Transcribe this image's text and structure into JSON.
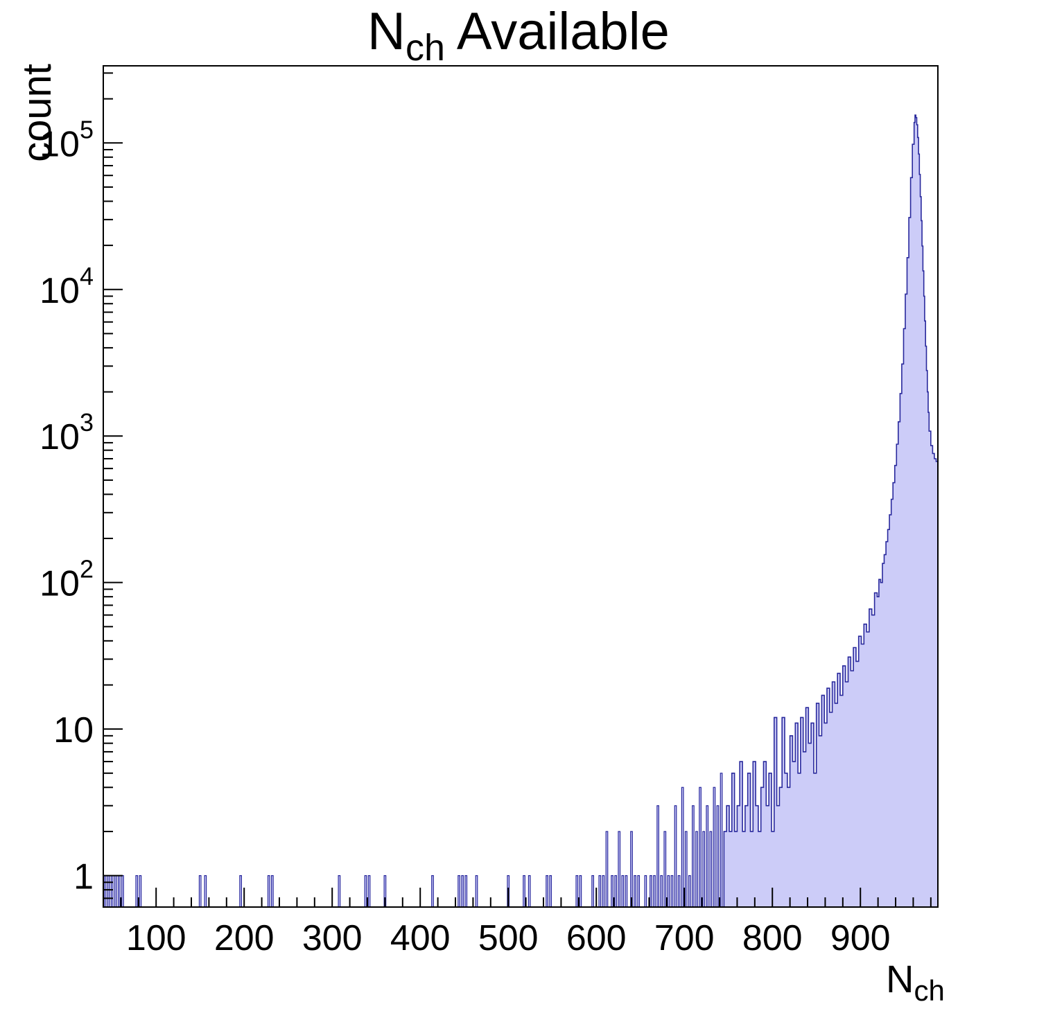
{
  "chart_data": {
    "type": "histogram",
    "title": {
      "prefix": "N",
      "sub": "ch",
      "suffix": " Available"
    },
    "xlabel": {
      "prefix": "N",
      "sub": "ch"
    },
    "ylabel": "count",
    "y_scale": "log",
    "grid": false,
    "legend": false,
    "xlim": [
      40,
      988
    ],
    "ylim": [
      0.61,
      336000
    ],
    "x_ticks": [
      100,
      200,
      300,
      400,
      500,
      600,
      700,
      800,
      900
    ],
    "x_minor_step": 20,
    "y_major_ticks": [
      1,
      10,
      100,
      1000,
      10000,
      100000
    ],
    "y_tick_labels": [
      "1",
      "10",
      "10^{2}",
      "10^{3}",
      "10^{4}",
      "10^{5}"
    ],
    "colors": {
      "fill": "#ccccf8",
      "line": "#28289c",
      "frame": "#000000"
    },
    "bin_width": 2,
    "spikes": [
      [
        42,
        1
      ],
      [
        46,
        1
      ],
      [
        50,
        1
      ],
      [
        54,
        1
      ],
      [
        58,
        1
      ],
      [
        62,
        1
      ],
      [
        78,
        1
      ],
      [
        82,
        1
      ],
      [
        150,
        1
      ],
      [
        156,
        1
      ],
      [
        196,
        1
      ],
      [
        228,
        1
      ],
      [
        232,
        1
      ],
      [
        308,
        1
      ],
      [
        338,
        1
      ],
      [
        342,
        1
      ],
      [
        360,
        1
      ],
      [
        414,
        1
      ],
      [
        444,
        1
      ],
      [
        448,
        1
      ],
      [
        452,
        1
      ],
      [
        464,
        1
      ],
      [
        500,
        1
      ],
      [
        518,
        1
      ],
      [
        524,
        1
      ],
      [
        544,
        1
      ],
      [
        548,
        1
      ],
      [
        578,
        1
      ],
      [
        582,
        1
      ],
      [
        596,
        1
      ],
      [
        604,
        1
      ],
      [
        608,
        1
      ],
      [
        612,
        2
      ],
      [
        618,
        1
      ],
      [
        622,
        1
      ],
      [
        626,
        2
      ],
      [
        630,
        1
      ],
      [
        634,
        1
      ],
      [
        640,
        2
      ],
      [
        644,
        1
      ],
      [
        648,
        1
      ],
      [
        656,
        1
      ],
      [
        662,
        1
      ],
      [
        666,
        1
      ],
      [
        670,
        3
      ],
      [
        674,
        1
      ],
      [
        678,
        2
      ],
      [
        682,
        1
      ],
      [
        686,
        1
      ],
      [
        690,
        3
      ],
      [
        694,
        1
      ],
      [
        698,
        4
      ],
      [
        702,
        2
      ],
      [
        706,
        1
      ],
      [
        710,
        3
      ],
      [
        714,
        2
      ],
      [
        718,
        4
      ],
      [
        722,
        2
      ],
      [
        726,
        3
      ],
      [
        730,
        2
      ],
      [
        734,
        4
      ],
      [
        738,
        3
      ],
      [
        742,
        5
      ]
    ],
    "envelope": [
      [
        745,
        2
      ],
      [
        748,
        3
      ],
      [
        751,
        2
      ],
      [
        754,
        5
      ],
      [
        757,
        2
      ],
      [
        760,
        3
      ],
      [
        763,
        6
      ],
      [
        766,
        2
      ],
      [
        769,
        3
      ],
      [
        772,
        5
      ],
      [
        775,
        2
      ],
      [
        778,
        6
      ],
      [
        781,
        3
      ],
      [
        784,
        2
      ],
      [
        787,
        4
      ],
      [
        790,
        6
      ],
      [
        793,
        3
      ],
      [
        796,
        5
      ],
      [
        799,
        2
      ],
      [
        802,
        12
      ],
      [
        805,
        3
      ],
      [
        808,
        4
      ],
      [
        811,
        12
      ],
      [
        814,
        5
      ],
      [
        817,
        4
      ],
      [
        820,
        9
      ],
      [
        823,
        6
      ],
      [
        826,
        11
      ],
      [
        829,
        5
      ],
      [
        832,
        12
      ],
      [
        835,
        7
      ],
      [
        838,
        14
      ],
      [
        841,
        8
      ],
      [
        844,
        11
      ],
      [
        847,
        5
      ],
      [
        850,
        15
      ],
      [
        853,
        9
      ],
      [
        856,
        17
      ],
      [
        859,
        11
      ],
      [
        862,
        19
      ],
      [
        865,
        13
      ],
      [
        868,
        21
      ],
      [
        871,
        15
      ],
      [
        874,
        24
      ],
      [
        877,
        17
      ],
      [
        880,
        27
      ],
      [
        883,
        21
      ],
      [
        886,
        31
      ],
      [
        889,
        25
      ],
      [
        892,
        36
      ],
      [
        895,
        29
      ],
      [
        898,
        43
      ],
      [
        901,
        38
      ],
      [
        904,
        52
      ],
      [
        907,
        46
      ],
      [
        910,
        66
      ],
      [
        913,
        60
      ],
      [
        916,
        85
      ],
      [
        919,
        80
      ],
      [
        921,
        105
      ],
      [
        923,
        100
      ],
      [
        925,
        135
      ],
      [
        927,
        155
      ],
      [
        929,
        190
      ],
      [
        931,
        230
      ],
      [
        933,
        290
      ],
      [
        935,
        370
      ],
      [
        937,
        480
      ],
      [
        939,
        630
      ],
      [
        941,
        880
      ],
      [
        943,
        1250
      ],
      [
        945,
        1950
      ],
      [
        947,
        3100
      ],
      [
        949,
        5400
      ],
      [
        951,
        9300
      ],
      [
        953,
        16500
      ],
      [
        955,
        31000
      ],
      [
        957,
        58000
      ],
      [
        959,
        98000
      ],
      [
        961,
        138000
      ],
      [
        962,
        155000
      ],
      [
        963,
        149000
      ],
      [
        964,
        133000
      ],
      [
        965,
        109000
      ],
      [
        966,
        84000
      ],
      [
        967,
        61000
      ],
      [
        968,
        43000
      ],
      [
        969,
        29500
      ],
      [
        970,
        19800
      ],
      [
        971,
        13400
      ],
      [
        972,
        9000
      ],
      [
        973,
        6100
      ],
      [
        974,
        4100
      ],
      [
        975,
        2800
      ],
      [
        976,
        2000
      ],
      [
        977,
        1450
      ],
      [
        978,
        1080
      ],
      [
        980,
        860
      ],
      [
        982,
        760
      ],
      [
        984,
        700
      ],
      [
        986,
        670
      ],
      [
        988,
        650
      ]
    ]
  }
}
